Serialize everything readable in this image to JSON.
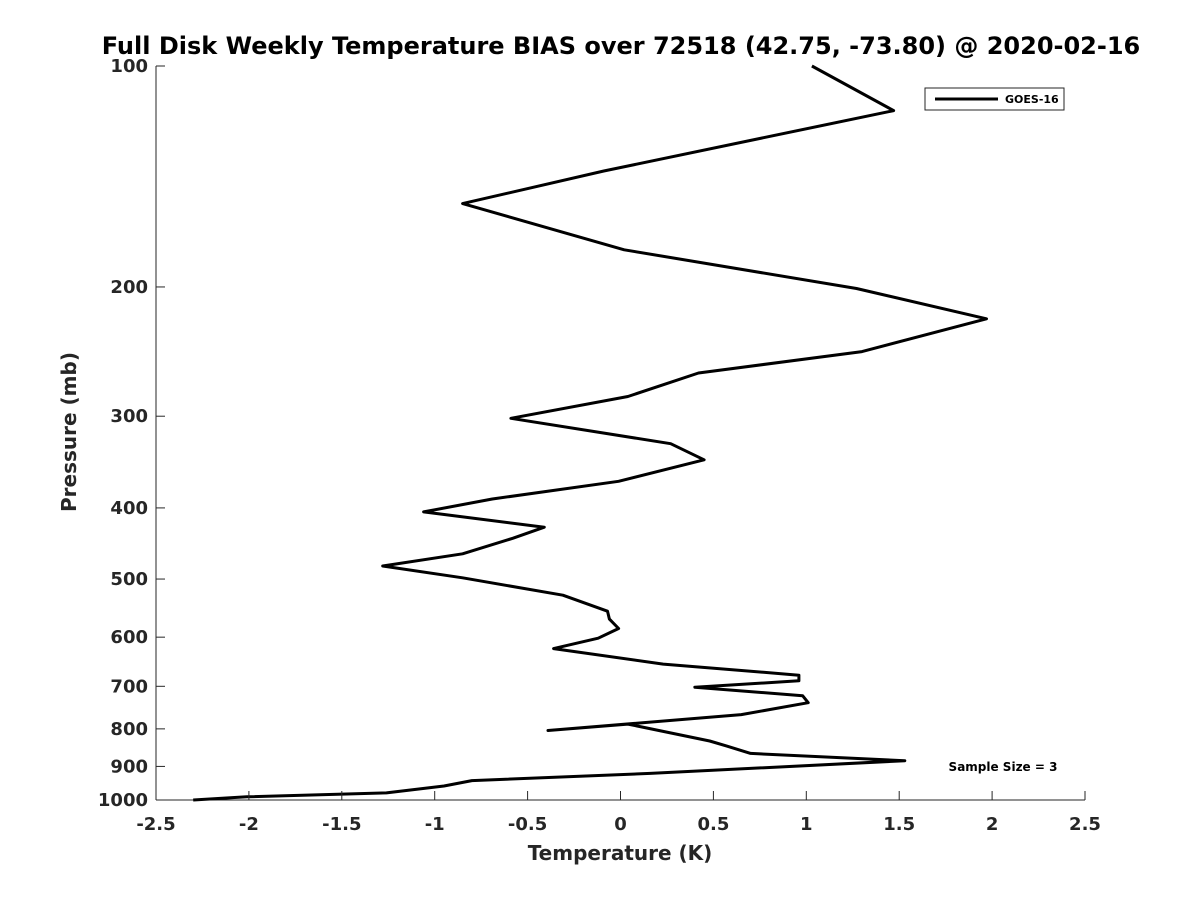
{
  "chart_data": {
    "type": "line",
    "title": "Full Disk Weekly Temperature BIAS over 72518 (42.75, -73.80) @ 2020-02-16",
    "xlabel": "Temperature (K)",
    "ylabel": "Pressure (mb)",
    "xlim": [
      -2.5,
      2.5
    ],
    "ylim": [
      100,
      1000
    ],
    "y_scale": "log",
    "y_reversed": true,
    "x_ticks": [
      -2.5,
      -2,
      -1.5,
      -1,
      -0.5,
      0,
      0.5,
      1,
      1.5,
      2,
      2.5
    ],
    "x_tick_labels": [
      "-2.5",
      "-2",
      "-1.5",
      "-1",
      "-0.5",
      "0",
      "0.5",
      "1",
      "1.5",
      "2",
      "2.5"
    ],
    "y_ticks": [
      100,
      200,
      300,
      400,
      500,
      600,
      700,
      800,
      900,
      1000
    ],
    "y_tick_labels": [
      "100",
      "200",
      "300",
      "400",
      "500",
      "600",
      "700",
      "800",
      "900",
      "1000"
    ],
    "grid": false,
    "legend_position": "top-right",
    "series": [
      {
        "name": "GOES-16",
        "color": "#000000",
        "x": [
          1.03,
          1.47,
          -0.09,
          -0.85,
          0.02,
          1.27,
          1.97,
          1.3,
          0.42,
          0.04,
          -0.59,
          0.27,
          0.45,
          -0.01,
          -0.69,
          -1.06,
          -0.41,
          -0.58,
          -0.85,
          -1.28,
          -0.85,
          -0.31,
          -0.07,
          -0.06,
          -0.01,
          -0.12,
          -0.36,
          0.23,
          0.96,
          0.96,
          0.4,
          0.98,
          1.01,
          0.65,
          -0.39,
          0.04,
          0.48,
          0.57,
          0.7,
          1.53,
          0.16,
          -0.8,
          -0.95,
          -1.26,
          -2.01,
          -2.3
        ],
        "y": [
          100,
          115,
          139,
          154,
          178,
          201,
          221,
          245,
          262,
          282,
          302,
          327,
          344,
          368,
          389,
          405,
          425,
          440,
          462,
          480,
          498,
          526,
          553,
          567,
          584,
          602,
          622,
          653,
          676,
          688,
          702,
          721,
          737,
          765,
          804,
          788,
          831,
          844,
          864,
          884,
          920,
          941,
          957,
          978,
          990,
          1000
        ]
      }
    ],
    "annotation": "Sample Size = 3"
  }
}
